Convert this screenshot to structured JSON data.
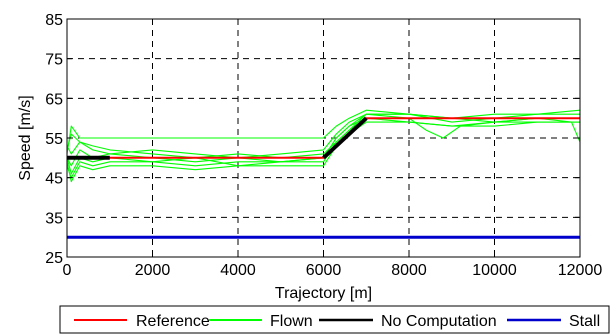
{
  "chart_data": {
    "type": "line",
    "xlabel": "Trajectory [m]",
    "ylabel": "Speed [m/s]",
    "xlim": [
      0,
      12000
    ],
    "ylim": [
      25,
      85
    ],
    "xticks": [
      0,
      2000,
      4000,
      6000,
      8000,
      10000,
      12000
    ],
    "yticks": [
      25,
      35,
      45,
      55,
      65,
      75,
      85
    ],
    "grid": true,
    "legend_position": "bottom",
    "series": [
      {
        "name": "Reference",
        "color": "#ff0000",
        "x": [
          0,
          6000,
          7000,
          12000
        ],
        "y": [
          50,
          50,
          60,
          60
        ]
      },
      {
        "name": "Flown",
        "color": "#00ff00",
        "runs": [
          {
            "x": [
              0,
              100,
              300,
              600,
              1000,
              2000,
              3000,
              4000,
              5000,
              6000,
              6300,
              6600,
              7000,
              8000,
              9000,
              10000,
              11000,
              12000
            ],
            "y": [
              50,
              48,
              52,
              50,
              51,
              50,
              49,
              50,
              49,
              50,
              55,
              58,
              61,
              60,
              60,
              59,
              60,
              60
            ]
          },
          {
            "x": [
              0,
              100,
              300,
              600,
              1000,
              2000,
              3000,
              4000,
              5000,
              6000,
              6300,
              6600,
              7000,
              8000,
              9000,
              10000,
              11000,
              12000
            ],
            "y": [
              52,
              56,
              54,
              53,
              52,
              51,
              50,
              51,
              50,
              51,
              54,
              57,
              61,
              61,
              59,
              60,
              61,
              61
            ]
          },
          {
            "x": [
              0,
              100,
              300,
              600,
              1000,
              2000,
              3000,
              4000,
              5000,
              6000,
              6300,
              6600,
              7000,
              8000,
              9000,
              10000,
              11000,
              12000
            ],
            "y": [
              48,
              45,
              49,
              48,
              49,
              49,
              48,
              49,
              49,
              49,
              54,
              57,
              60,
              59,
              58,
              59,
              59,
              59
            ]
          },
          {
            "x": [
              0,
              100,
              300,
              600,
              1000,
              2000,
              3000,
              4000,
              5000,
              6000,
              6300,
              6600,
              7000,
              8000,
              9000,
              10000,
              11000,
              12000
            ],
            "y": [
              51,
              58,
              55,
              55,
              55,
              55,
              55,
              55,
              55,
              55,
              58,
              60,
              62,
              61,
              60,
              61,
              61,
              62
            ]
          },
          {
            "x": [
              0,
              100,
              300,
              600,
              1000,
              2000,
              3000,
              4000,
              5000,
              6000,
              6300,
              6600,
              7000,
              8000,
              8400,
              8800,
              9200,
              10000,
              11000,
              12000
            ],
            "y": [
              50,
              46,
              50,
              49,
              50,
              49,
              50,
              48,
              49,
              50,
              55,
              58,
              60,
              60,
              57,
              55,
              58,
              59,
              60,
              60
            ]
          },
          {
            "x": [
              0,
              100,
              300,
              600,
              1000,
              2000,
              3000,
              4000,
              5000,
              6000,
              6300,
              6600,
              7000,
              8000,
              9000,
              10000,
              11000,
              11800,
              12000
            ],
            "y": [
              53,
              51,
              54,
              52,
              51,
              52,
              51,
              50,
              51,
              52,
              56,
              59,
              61,
              61,
              60,
              60,
              60,
              59,
              54
            ]
          },
          {
            "x": [
              0,
              100,
              300,
              600,
              1000,
              2000,
              3000,
              4000,
              5000,
              6000,
              6300,
              6600,
              7000,
              8000,
              9000,
              10000,
              11000,
              12000
            ],
            "y": [
              49,
              44,
              48,
              47,
              48,
              48,
              47,
              48,
              48,
              48,
              53,
              56,
              59,
              59,
              58,
              58,
              59,
              59
            ]
          }
        ]
      },
      {
        "name": "No Computation",
        "color": "#000000",
        "segments": [
          {
            "x": [
              0,
              1000
            ],
            "y": [
              50,
              50
            ]
          },
          {
            "x": [
              6000,
              7000
            ],
            "y": [
              50,
              60
            ]
          }
        ]
      },
      {
        "name": "Stall",
        "color": "#0000cc",
        "x": [
          0,
          12000
        ],
        "y": [
          30,
          30
        ]
      }
    ]
  }
}
